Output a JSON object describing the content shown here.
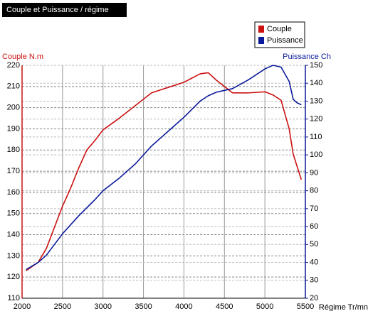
{
  "chart_data": {
    "type": "line",
    "title": "Couple et Puissance / régime",
    "y_label": "Couple N.m",
    "y2_label": "Puissance Ch",
    "x_label": "Régime Tr/mn",
    "x": [
      2050,
      2200,
      2300,
      2400,
      2500,
      2600,
      2700,
      2800,
      2900,
      3000,
      3200,
      3400,
      3600,
      3800,
      4000,
      4200,
      4300,
      4400,
      4500,
      4600,
      4800,
      5000,
      5100,
      5200,
      5300,
      5350,
      5400,
      5450
    ],
    "series": [
      {
        "name": "Couple",
        "color": "#cc1111",
        "axis": "y",
        "values": [
          123,
          127,
          133.5,
          143.5,
          153.5,
          162,
          171.5,
          180,
          184.5,
          189.5,
          195,
          201,
          207,
          209.5,
          212,
          216,
          216.5,
          213,
          210,
          207,
          207,
          207.5,
          206,
          203.5,
          190,
          178,
          172,
          166
        ]
      },
      {
        "name": "Puissance",
        "color": "#0a1a9a",
        "axis": "y2",
        "values": [
          36,
          40,
          44,
          50,
          56,
          61,
          66,
          70.5,
          75,
          80,
          87,
          95,
          105,
          113,
          121,
          130,
          133,
          135,
          136,
          137,
          142,
          148,
          150,
          149,
          141,
          131,
          129,
          128
        ]
      }
    ],
    "xlim": [
      2000,
      5500
    ],
    "xticks": [
      2000,
      2500,
      3000,
      3500,
      4000,
      4500,
      5000,
      5500
    ],
    "ylim": [
      110,
      220
    ],
    "yticks": [
      110,
      120,
      130,
      140,
      150,
      160,
      170,
      180,
      190,
      200,
      210,
      220
    ],
    "y2lim": [
      20,
      150
    ],
    "y2ticks": [
      20,
      30,
      40,
      50,
      60,
      70,
      80,
      90,
      100,
      110,
      120,
      130,
      140,
      150
    ],
    "grid": true,
    "legend": "top-right"
  }
}
